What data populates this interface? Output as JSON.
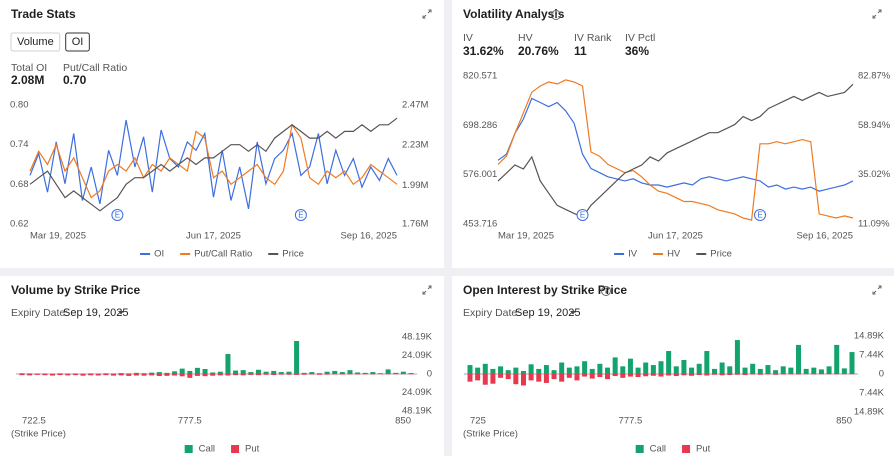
{
  "panels": [
    {
      "buttons": [
        "Volume",
        "OI"
      ],
      "active": 1,
      "stats": [
        {
          "label": "Total OI",
          "value": "2.08M"
        },
        {
          "label": "Put/Call Ratio",
          "value": "0.70"
        }
      ]
    },
    {
      "stats": [
        {
          "label": "IV",
          "value": "31.62%"
        },
        {
          "label": "HV",
          "value": "20.76%"
        },
        {
          "label": "IV Rank",
          "value": "11"
        },
        {
          "label": "IV Pctl",
          "value": "36%"
        }
      ]
    },
    {
      "expiry_label": "Expiry Date:",
      "expiry": "Sep 19, 2025"
    },
    {
      "expiry_label": "Expiry Date:",
      "expiry": "Sep 19, 2025"
    }
  ],
  "chart_data": [
    {
      "type": "line",
      "title": "Trade Stats",
      "categories": [
        "Mar 19, 2025",
        null,
        null,
        null,
        null,
        null,
        null,
        null,
        null,
        null,
        null,
        null,
        null,
        null,
        null,
        null,
        null,
        null,
        null,
        null,
        null,
        "Jun 17, 2025",
        null,
        null,
        null,
        null,
        null,
        null,
        null,
        null,
        null,
        null,
        null,
        null,
        null,
        null,
        null,
        null,
        null,
        null,
        null,
        null,
        "Sep 16, 2025"
      ],
      "ylim": [
        0.62,
        0.8
      ],
      "yticks": [
        0.62,
        0.68,
        0.74,
        {
          "value": 0.8,
          "label": "0.80"
        }
      ],
      "y2lim": [
        1760000,
        2470000
      ],
      "y2ticks": [
        {
          "value": 1760000,
          "label": "1.76M"
        },
        {
          "value": 1990000,
          "label": "1.99M"
        },
        {
          "value": 2230000,
          "label": "2.23M"
        },
        {
          "value": 2470000,
          "label": "2.47M"
        }
      ],
      "events": [
        {
          "label": "E",
          "at": 10
        },
        {
          "label": "E",
          "at": 31
        }
      ],
      "series": [
        {
          "name": "OI",
          "color": "#3d6ee0",
          "axis": "y2",
          "values": [
            2050000,
            2180000,
            1950000,
            2250000,
            2000000,
            2300000,
            1900000,
            2100000,
            1880000,
            2200000,
            2050000,
            2380000,
            2100000,
            2280000,
            1950000,
            2320000,
            2150000,
            2100000,
            2250000,
            2200000,
            2300000,
            1920000,
            2200000,
            1900000,
            2100000,
            1850000,
            2250000,
            2000000,
            2150000,
            2200000,
            2300000,
            2050000,
            2100000,
            2300000,
            2000000,
            2200000,
            2050000,
            2150000,
            1980000,
            2100000,
            2020000,
            2150000,
            2050000
          ]
        },
        {
          "name": "Put/Call Ratio",
          "color": "#f07a22",
          "values": [
            0.7,
            0.73,
            0.71,
            0.74,
            0.7,
            0.72,
            0.69,
            0.66,
            0.67,
            0.7,
            0.71,
            0.7,
            0.72,
            0.69,
            0.71,
            0.7,
            0.72,
            0.71,
            0.7,
            0.76,
            0.75,
            0.69,
            0.7,
            0.68,
            0.69,
            0.7,
            0.71,
            0.69,
            0.68,
            0.7,
            0.77,
            0.75,
            0.69,
            0.68,
            0.7,
            0.69,
            0.7,
            0.68,
            0.69,
            0.71,
            0.7,
            0.69,
            0.68
          ]
        },
        {
          "name": "Price",
          "color": "#555555",
          "values": [
            0.68,
            0.69,
            0.7,
            0.68,
            0.66,
            0.67,
            0.66,
            0.65,
            0.64,
            0.65,
            0.66,
            0.68,
            0.69,
            0.69,
            0.7,
            0.71,
            0.7,
            0.71,
            0.72,
            0.71,
            0.72,
            0.72,
            0.73,
            0.74,
            0.74,
            0.73,
            0.74,
            0.73,
            0.75,
            0.76,
            0.77,
            0.76,
            0.75,
            0.75,
            0.76,
            0.75,
            0.76,
            0.76,
            0.77,
            0.76,
            0.77,
            0.77,
            0.78
          ]
        }
      ]
    },
    {
      "type": "line",
      "title": "Volatility Analysis",
      "categories": [
        "Mar 19, 2025",
        null,
        null,
        null,
        null,
        null,
        null,
        null,
        null,
        null,
        null,
        null,
        null,
        null,
        null,
        null,
        null,
        null,
        null,
        null,
        null,
        "Jun 17, 2025",
        null,
        null,
        null,
        null,
        null,
        null,
        null,
        null,
        null,
        null,
        null,
        null,
        null,
        null,
        null,
        null,
        null,
        null,
        null,
        null,
        "Sep 16, 2025"
      ],
      "ylim": [
        453.716,
        820.571
      ],
      "yticks": [
        453.716,
        576.001,
        698.286,
        820.571
      ],
      "y2lim": [
        11.09,
        82.87
      ],
      "y2ticks": [
        {
          "value": 11.09,
          "label": "11.09%"
        },
        {
          "value": 35.02,
          "label": "35.02%"
        },
        {
          "value": 58.94,
          "label": "58.94%"
        },
        {
          "value": 82.87,
          "label": "82.87%"
        }
      ],
      "events": [
        {
          "label": "E",
          "at": 10
        },
        {
          "label": "E",
          "at": 31
        }
      ],
      "series": [
        {
          "name": "IV",
          "color": "#3d6ee0",
          "axis": "y2",
          "values": [
            42,
            45,
            55,
            62,
            72,
            70,
            68,
            70,
            66,
            60,
            45,
            38,
            36,
            34,
            33,
            32,
            33,
            31,
            30,
            30,
            29,
            30,
            31,
            30,
            33,
            34,
            33,
            32,
            33,
            34,
            33,
            32,
            29,
            30,
            28,
            29,
            28,
            29,
            27,
            28,
            29,
            30,
            32
          ]
        },
        {
          "name": "HV",
          "color": "#f07a22",
          "axis": "y2",
          "values": [
            40,
            44,
            55,
            65,
            75,
            78,
            80,
            79,
            81,
            80,
            78,
            46,
            44,
            40,
            38,
            36,
            37,
            34,
            30,
            27,
            26,
            24,
            22,
            22,
            21,
            20,
            18,
            17,
            16,
            14,
            13,
            50,
            50,
            51,
            50,
            51,
            52,
            51,
            16,
            15,
            14,
            15,
            14
          ]
        },
        {
          "name": "Price",
          "color": "#555555",
          "values": [
            560,
            580,
            600,
            590,
            620,
            560,
            530,
            500,
            490,
            480,
            470,
            500,
            520,
            540,
            560,
            580,
            590,
            600,
            620,
            610,
            630,
            640,
            650,
            660,
            670,
            680,
            680,
            690,
            700,
            720,
            710,
            720,
            740,
            750,
            760,
            770,
            760,
            770,
            780,
            770,
            775,
            780,
            800
          ]
        }
      ]
    },
    {
      "type": "bar",
      "title": "Volume by Strike Price",
      "x_label": "(Strike Price)",
      "x": [
        722.5,
        725,
        727.5,
        730,
        732.5,
        735,
        737.5,
        740,
        742.5,
        745,
        747.5,
        750,
        752.5,
        755,
        757.5,
        760,
        762.5,
        765,
        767.5,
        770,
        772.5,
        775,
        777.5,
        780,
        782.5,
        785,
        787.5,
        790,
        792.5,
        795,
        797.5,
        800,
        802.5,
        805,
        807.5,
        810,
        812.5,
        815,
        817.5,
        820,
        822.5,
        825,
        827.5,
        830,
        832.5,
        835,
        837.5,
        840,
        842.5,
        845,
        847.5,
        850
      ],
      "xlim": [
        722.5,
        850
      ],
      "xticks": [
        722.5,
        777.5,
        850
      ],
      "ylim": [
        0,
        48190
      ],
      "yticks": [
        0,
        {
          "value": 24090,
          "label": "24.09K"
        },
        {
          "value": 48190,
          "label": "48.19K"
        }
      ],
      "yticks_lower": [
        {
          "value": 24090,
          "label": "24.09K"
        },
        {
          "value": 48190,
          "label": "48.19K"
        }
      ],
      "series": [
        {
          "name": "Call",
          "color": "#13a36c",
          "direction": "up",
          "values": [
            1000,
            800,
            600,
            700,
            500,
            900,
            600,
            700,
            500,
            800,
            600,
            900,
            700,
            1200,
            800,
            1500,
            1000,
            1800,
            2500,
            1500,
            3500,
            7000,
            4000,
            8000,
            6500,
            2000,
            3000,
            26000,
            4500,
            5000,
            2500,
            5500,
            3000,
            4000,
            2500,
            3000,
            43000,
            1500,
            2500,
            1000,
            3000,
            4000,
            2500,
            5000,
            2000,
            1500,
            2500,
            1000,
            6000,
            1500,
            3000,
            1200
          ]
        },
        {
          "name": "Put",
          "color": "#e8384f",
          "direction": "down",
          "values": [
            1500,
            1800,
            1200,
            1600,
            2000,
            1400,
            1800,
            1500,
            2200,
            1700,
            1900,
            1500,
            2100,
            1800,
            2500,
            2000,
            2200,
            1800,
            2600,
            2400,
            2000,
            3000,
            5000,
            2500,
            2800,
            2200,
            1800,
            2000,
            1500,
            1700,
            1200,
            1500,
            1000,
            1300,
            800,
            1000,
            1200,
            900,
            700,
            1000,
            800,
            600,
            700,
            500,
            600,
            400,
            500,
            300,
            400,
            300,
            200,
            300
          ]
        }
      ]
    },
    {
      "type": "bar",
      "title": "Open Interest by Strike Price",
      "x_label": "(Strike Price)",
      "x": [
        725,
        727.5,
        730,
        732.5,
        735,
        737.5,
        740,
        742.5,
        745,
        747.5,
        750,
        752.5,
        755,
        757.5,
        760,
        762.5,
        765,
        767.5,
        770,
        772.5,
        775,
        777.5,
        780,
        782.5,
        785,
        787.5,
        790,
        792.5,
        795,
        797.5,
        800,
        802.5,
        805,
        807.5,
        810,
        812.5,
        815,
        817.5,
        820,
        822.5,
        825,
        827.5,
        830,
        832.5,
        835,
        837.5,
        840,
        842.5,
        845,
        847.5,
        850
      ],
      "xlim": [
        725,
        850
      ],
      "xticks": [
        725,
        777.5,
        850
      ],
      "ylim": [
        0,
        14890
      ],
      "yticks": [
        0,
        {
          "value": 7440,
          "label": "7.44K"
        },
        {
          "value": 14890,
          "label": "14.89K"
        }
      ],
      "yticks_lower": [
        {
          "value": 7440,
          "label": "7.44K"
        },
        {
          "value": 14890,
          "label": "14.89K"
        }
      ],
      "series": [
        {
          "name": "Call",
          "color": "#13a36c",
          "direction": "up",
          "values": [
            3500,
            2500,
            4000,
            2000,
            3000,
            1500,
            2500,
            1200,
            3800,
            2000,
            3500,
            1500,
            4500,
            2500,
            3000,
            5000,
            2000,
            4000,
            2500,
            6500,
            3000,
            6000,
            2500,
            4500,
            3500,
            5000,
            9000,
            3000,
            5500,
            2500,
            4000,
            9000,
            2000,
            4500,
            3000,
            13300,
            2500,
            4000,
            2000,
            3500,
            1500,
            3000,
            2500,
            11400,
            2000,
            2500,
            1800,
            3000,
            11400,
            2200,
            8600
          ]
        },
        {
          "name": "Put",
          "color": "#e8384f",
          "direction": "down",
          "values": [
            3000,
            2500,
            4200,
            3800,
            1500,
            2000,
            4000,
            4500,
            2500,
            3000,
            3500,
            2000,
            3000,
            1500,
            2500,
            1000,
            1800,
            1200,
            2000,
            800,
            1500,
            1000,
            1200,
            900,
            700,
            1000,
            600,
            800,
            500,
            700,
            400,
            600,
            300,
            500,
            400,
            300,
            400,
            200,
            300,
            200,
            300,
            200,
            150,
            200,
            100,
            150,
            100,
            100,
            150,
            100,
            100
          ]
        }
      ]
    }
  ]
}
